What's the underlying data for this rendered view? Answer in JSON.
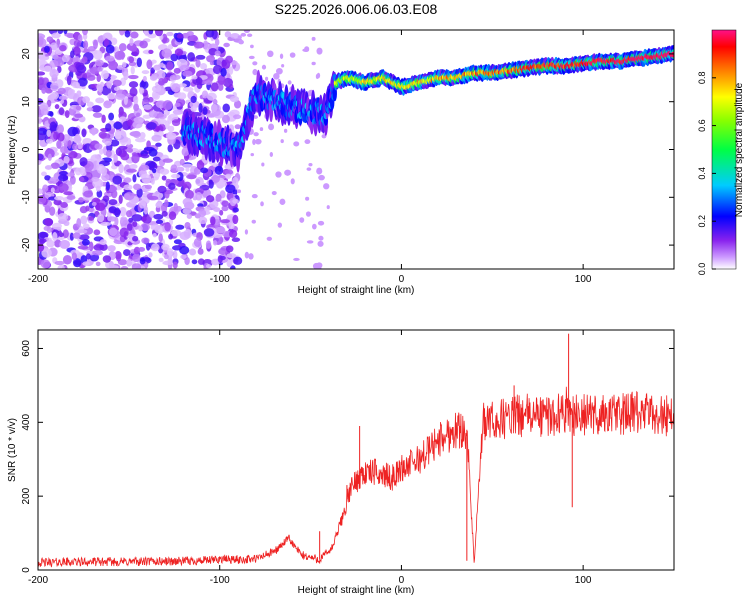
{
  "title": "S225.2026.006.06.03.E08",
  "chart_data": [
    {
      "type": "heatmap",
      "xlabel": "Height of straight line (km)",
      "ylabel": "Frequency (Hz)",
      "xlim": [
        -200,
        150
      ],
      "ylim": [
        -25,
        25
      ],
      "xticks": [
        -200,
        -100,
        0,
        100
      ],
      "yticks": [
        -20,
        -10,
        0,
        10,
        20
      ],
      "colorbar": {
        "label": "Normalized spectral amplitude",
        "range": [
          0,
          1
        ],
        "ticks": [
          0.0,
          0.2,
          0.4,
          0.6,
          0.8
        ]
      },
      "ridge": {
        "description_points_x_km": [
          -120,
          -110,
          -100,
          -95,
          -90,
          -80,
          -70,
          -60,
          -50,
          -42,
          -36,
          -30,
          -20,
          -10,
          -5,
          0,
          10,
          20,
          30,
          40,
          50,
          60,
          70,
          80,
          90,
          100,
          110,
          120,
          130,
          140,
          150
        ],
        "description_points_freq_hz": [
          4,
          3,
          1.5,
          0.5,
          0,
          12,
          10,
          9,
          8,
          7,
          14,
          15,
          14,
          15,
          14,
          13,
          14,
          15,
          15,
          16,
          16,
          16.5,
          17,
          17.5,
          17.5,
          18,
          18.5,
          18.5,
          19,
          19.5,
          20
        ]
      }
    },
    {
      "type": "line",
      "xlabel": "Height of straight line (km)",
      "ylabel": "SNR (10 * v/v)",
      "xlim": [
        -200,
        150
      ],
      "ylim": [
        0,
        650
      ],
      "xticks": [
        -200,
        -100,
        0,
        100
      ],
      "yticks": [
        0,
        200,
        400,
        600
      ],
      "color": "#ee2222",
      "series": [
        {
          "name": "SNR",
          "x": [
            -200,
            -180,
            -160,
            -140,
            -120,
            -105,
            -100,
            -90,
            -80,
            -70,
            -62,
            -55,
            -45,
            -38,
            -32,
            -28,
            -22,
            -15,
            -5,
            0,
            10,
            20,
            30,
            36,
            40,
            45,
            50,
            60,
            70,
            80,
            88,
            92,
            95,
            100,
            110,
            120,
            130,
            140,
            150
          ],
          "y": [
            20,
            22,
            22,
            23,
            24,
            26,
            30,
            28,
            30,
            50,
            85,
            40,
            28,
            60,
            150,
            220,
            260,
            265,
            250,
            275,
            300,
            350,
            380,
            380,
            20,
            400,
            400,
            415,
            420,
            415,
            425,
            440,
            420,
            420,
            420,
            422,
            425,
            420,
            420
          ]
        }
      ],
      "spikes": [
        {
          "x": -45,
          "y": 105
        },
        {
          "x": -30,
          "y": 230
        },
        {
          "x": -23,
          "y": 390
        },
        {
          "x": 36,
          "y": 25
        },
        {
          "x": 40,
          "y": 20
        },
        {
          "x": 62,
          "y": 500
        },
        {
          "x": 92,
          "y": 640
        },
        {
          "x": 94,
          "y": 170
        }
      ]
    }
  ]
}
